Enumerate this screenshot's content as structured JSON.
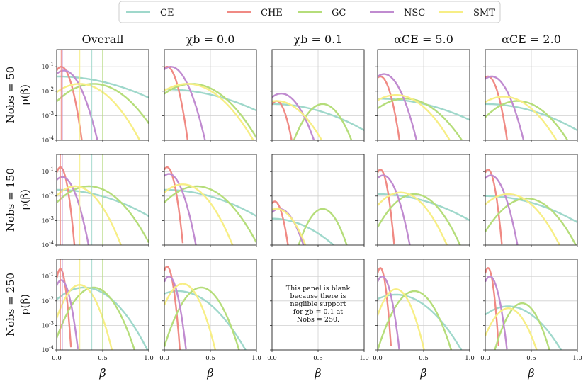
{
  "chart_data": {
    "type": "line",
    "x_scale": "linear",
    "y_scale": "log",
    "xlim": [
      0.0,
      1.0
    ],
    "ylim": [
      0.0001,
      0.5
    ],
    "x_ticks": [
      "0.0",
      "0.5",
      "1.0"
    ],
    "y_ticks": [
      "10^-4",
      "10^-3",
      "10^-2",
      "10^-1"
    ],
    "grid": true,
    "legend_position": "top",
    "xlabel": "β",
    "ylabel": "p(β)",
    "legend": [
      {
        "name": "CE",
        "color": "#9fd8cb"
      },
      {
        "name": "CHE",
        "color": "#f08a84"
      },
      {
        "name": "GC",
        "color": "#b5dd7a"
      },
      {
        "name": "NSC",
        "color": "#c08bd0"
      },
      {
        "name": "SMT",
        "color": "#f7ee85"
      }
    ],
    "column_titles": [
      "Overall",
      "χb = 0.0",
      "χb = 0.1",
      "αCE = 5.0",
      "αCE = 2.0"
    ],
    "row_labels": [
      "Nobs = 50",
      "Nobs = 150",
      "Nobs = 250"
    ],
    "blank_panel_note": [
      "This panel is blank",
      "because there is",
      "neglible support",
      "for χb = 0.1 at",
      "Nobs = 250."
    ],
    "series_shapes": {
      "CE": [
        [
          [
            0.0,
            0.04,
            0.5
          ],
          [
            0.0,
            0.012,
            0.5
          ],
          [
            0.0,
            0.003,
            0.45
          ],
          [
            0.0,
            0.005,
            0.5
          ],
          [
            0.0,
            0.003,
            0.45
          ]
        ],
        [
          [
            0.0,
            0.018,
            0.45
          ],
          [
            0.0,
            0.018,
            0.45
          ],
          [
            0.0,
            0.0012,
            0.3
          ],
          [
            0.0,
            0.012,
            0.45
          ],
          [
            0.0,
            0.01,
            0.45
          ]
        ],
        [
          [
            0.3,
            0.035,
            0.2
          ],
          [
            0.15,
            0.025,
            0.22
          ],
          null,
          [
            0.2,
            0.018,
            0.22
          ],
          [
            0.25,
            0.006,
            0.2
          ]
        ]
      ],
      "CHE": [
        [
          [
            0.05,
            0.1,
            0.06
          ],
          [
            0.03,
            0.1,
            0.06
          ],
          [
            0.05,
            0.004,
            0.06
          ],
          [
            0.03,
            0.04,
            0.06
          ],
          [
            0.03,
            0.04,
            0.06
          ]
        ],
        [
          [
            0.04,
            0.15,
            0.04
          ],
          [
            0.03,
            0.15,
            0.045
          ],
          [
            0.03,
            0.006,
            0.05
          ],
          [
            0.03,
            0.12,
            0.04
          ],
          [
            0.03,
            0.12,
            0.04
          ]
        ],
        [
          [
            0.04,
            0.2,
            0.03
          ],
          [
            0.03,
            0.25,
            0.035
          ],
          null,
          [
            0.03,
            0.22,
            0.03
          ],
          [
            0.03,
            0.22,
            0.03
          ]
        ]
      ],
      "GC": [
        [
          [
            0.4,
            0.02,
            0.22
          ],
          [
            0.3,
            0.02,
            0.22
          ],
          [
            0.55,
            0.003,
            0.12
          ],
          [
            0.3,
            0.005,
            0.22
          ],
          [
            0.35,
            0.004,
            0.2
          ]
        ],
        [
          [
            0.35,
            0.025,
            0.2
          ],
          [
            0.35,
            0.025,
            0.2
          ],
          [
            0.55,
            0.003,
            0.1
          ],
          [
            0.4,
            0.012,
            0.16
          ],
          [
            0.45,
            0.008,
            0.18
          ]
        ],
        [
          [
            0.4,
            0.035,
            0.13
          ],
          [
            0.4,
            0.035,
            0.12
          ],
          null,
          [
            0.4,
            0.025,
            0.12
          ],
          [
            0.4,
            0.008,
            0.1
          ]
        ]
      ],
      "NSC": [
        [
          [
            0.08,
            0.07,
            0.1
          ],
          [
            0.07,
            0.1,
            0.1
          ],
          [
            0.1,
            0.008,
            0.12
          ],
          [
            0.07,
            0.05,
            0.1
          ],
          [
            0.07,
            0.04,
            0.1
          ]
        ],
        [
          [
            0.06,
            0.06,
            0.08
          ],
          [
            0.05,
            0.08,
            0.08
          ],
          [
            0.08,
            0.003,
            0.1
          ],
          [
            0.06,
            0.07,
            0.08
          ],
          [
            0.06,
            0.07,
            0.08
          ]
        ],
        [
          [
            0.05,
            0.07,
            0.05
          ],
          [
            0.05,
            0.1,
            0.05
          ],
          null,
          [
            0.05,
            0.1,
            0.05
          ],
          [
            0.05,
            0.1,
            0.05
          ]
        ]
      ],
      "SMT": [
        [
          [
            0.25,
            0.02,
            0.2
          ],
          [
            0.25,
            0.02,
            0.22
          ],
          [
            0.05,
            0.004,
            0.18
          ],
          [
            0.2,
            0.007,
            0.2
          ],
          [
            0.2,
            0.006,
            0.2
          ]
        ],
        [
          [
            0.2,
            0.025,
            0.15
          ],
          [
            0.2,
            0.03,
            0.16
          ],
          [
            0.05,
            0.003,
            0.12
          ],
          [
            0.25,
            0.014,
            0.16
          ],
          [
            0.25,
            0.012,
            0.18
          ]
        ],
        [
          [
            0.25,
            0.045,
            0.1
          ],
          [
            0.2,
            0.05,
            0.1
          ],
          null,
          [
            0.2,
            0.03,
            0.09
          ],
          [
            0.25,
            0.005,
            0.11
          ]
        ]
      ]
    },
    "overall_vlines": [
      [
        {
          "series": "CHE",
          "x": 0.05
        },
        {
          "series": "NSC",
          "x": 0.06
        },
        {
          "series": "CE",
          "x": 0.38
        },
        {
          "series": "GC",
          "x": 0.5
        },
        {
          "series": "SMT",
          "x": 0.25
        }
      ],
      [
        {
          "series": "CHE",
          "x": 0.04
        },
        {
          "series": "NSC",
          "x": 0.06
        },
        {
          "series": "SMT",
          "x": 0.25
        },
        {
          "series": "CE",
          "x": 0.38
        },
        {
          "series": "GC",
          "x": 0.5
        }
      ],
      [
        {
          "series": "CHE",
          "x": 0.04
        },
        {
          "series": "NSC",
          "x": 0.06
        },
        {
          "series": "SMT",
          "x": 0.25
        },
        {
          "series": "CE",
          "x": 0.38
        },
        {
          "series": "GC",
          "x": 0.5
        }
      ]
    ]
  }
}
